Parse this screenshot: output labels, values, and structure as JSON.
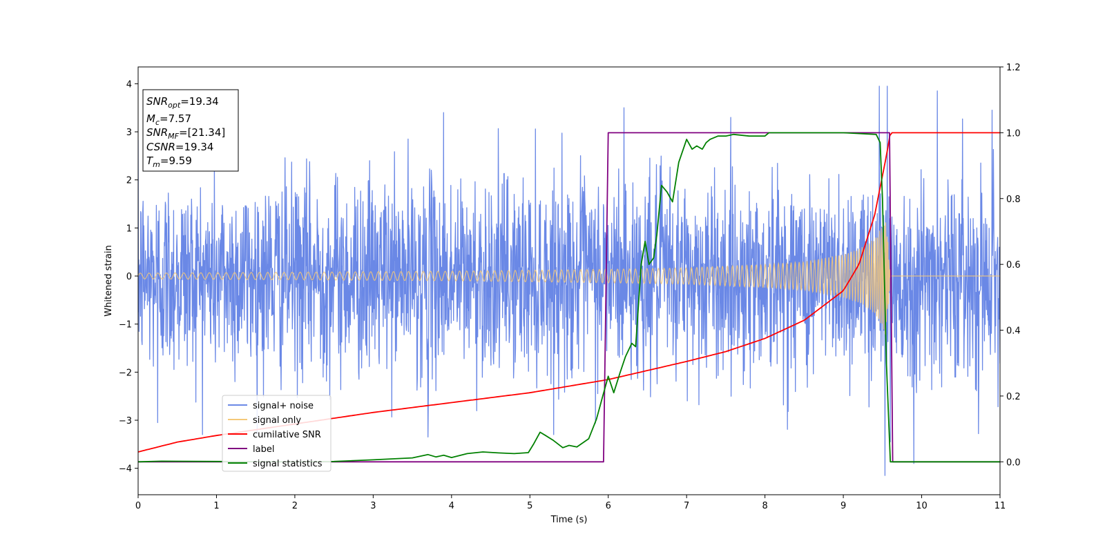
{
  "chart_data": {
    "type": "line",
    "xlabel": "Time (s)",
    "ylabel": "Whitened strain",
    "xlim": [
      0,
      11
    ],
    "ylim_left": [
      -4.55,
      4.35
    ],
    "ylim_right": [
      -0.1,
      1.2
    ],
    "x_ticks": [
      0,
      1,
      2,
      3,
      4,
      5,
      6,
      7,
      8,
      9,
      10,
      11
    ],
    "y_ticks_left": [
      -4,
      -3,
      -2,
      -1,
      0,
      1,
      2,
      3,
      4
    ],
    "y_ticks_right": [
      "0.0",
      "0.2",
      "0.4",
      "0.6",
      "0.8",
      "1.0",
      "1.2"
    ],
    "grid": false,
    "legend_position": "lower-left",
    "annotation_box": {
      "lines": [
        {
          "name": "SNR",
          "sub": "opt",
          "value": "=19.34"
        },
        {
          "name": "M",
          "sub": "c",
          "value": "=7.57"
        },
        {
          "name": "SNR",
          "sub": "MF",
          "value": "=[21.34]"
        },
        {
          "name": "CSNR",
          "sub": "",
          "value": "=19.34"
        },
        {
          "name": "T",
          "sub": "m",
          "value": "=9.59"
        }
      ]
    },
    "series": [
      {
        "name": "signal+ noise",
        "axis": "left",
        "color": "#6a88e6",
        "note_style": "noisy",
        "noise_sigma": 1.0,
        "x_range": [
          0,
          11
        ],
        "spikes": [
          [
            9.46,
            3.95
          ],
          [
            9.56,
            3.95
          ],
          [
            9.53,
            -4.15
          ],
          [
            9.9,
            -3.9
          ],
          [
            10.2,
            3.85
          ],
          [
            10.9,
            3.45
          ],
          [
            6.2,
            3.5
          ],
          [
            3.9,
            3.4
          ],
          [
            9.6,
            -3.45
          ],
          [
            3.7,
            -3.35
          ],
          [
            0.25,
            -3.05
          ]
        ]
      },
      {
        "name": "signal only",
        "axis": "left",
        "color": "#f5c878",
        "x": [
          0,
          1,
          2,
          3,
          4,
          5,
          6,
          7,
          8,
          8.5,
          9,
          9.2,
          9.4,
          9.5,
          9.55,
          9.6
        ],
        "amplitude": [
          0.06,
          0.07,
          0.08,
          0.09,
          0.1,
          0.12,
          0.14,
          0.17,
          0.24,
          0.3,
          0.45,
          0.56,
          0.78,
          1.05,
          1.3,
          0.0
        ]
      },
      {
        "name": "cumilative SNR",
        "axis": "right",
        "color": "#ff0000",
        "x": [
          0,
          0.5,
          1,
          2,
          3,
          4,
          5,
          6,
          7,
          7.5,
          8,
          8.5,
          9,
          9.2,
          9.4,
          9.5,
          9.55,
          9.6,
          11
        ],
        "y": [
          0.03,
          0.06,
          0.08,
          0.115,
          0.15,
          0.18,
          0.21,
          0.25,
          0.305,
          0.335,
          0.375,
          0.43,
          0.52,
          0.6,
          0.75,
          0.87,
          0.93,
          1.0,
          1.0
        ]
      },
      {
        "name": "label",
        "axis": "right",
        "color": "#800080",
        "x": [
          0,
          5.94,
          6.0,
          9.59,
          9.63,
          11
        ],
        "y": [
          0,
          0,
          1,
          1,
          0,
          0
        ]
      },
      {
        "name": "signal statistics",
        "axis": "right",
        "color": "#008000",
        "x": [
          0,
          0.3,
          1,
          2,
          2.5,
          3,
          3.5,
          3.7,
          3.8,
          3.9,
          4.0,
          4.2,
          4.4,
          4.6,
          4.8,
          4.98,
          5.05,
          5.13,
          5.2,
          5.3,
          5.42,
          5.5,
          5.6,
          5.75,
          5.85,
          5.93,
          6.0,
          6.07,
          6.15,
          6.22,
          6.3,
          6.35,
          6.42,
          6.47,
          6.52,
          6.58,
          6.62,
          6.68,
          6.75,
          6.82,
          6.9,
          7.0,
          7.07,
          7.13,
          7.2,
          7.25,
          7.3,
          7.4,
          7.5,
          7.6,
          7.8,
          8.0,
          8.05,
          8.2,
          8.6,
          9.0,
          9.42,
          9.47,
          9.5,
          9.55,
          9.6,
          9.62,
          10,
          11
        ],
        "y": [
          0.0,
          0.002,
          0.001,
          0.0,
          0.001,
          0.006,
          0.012,
          0.022,
          0.015,
          0.02,
          0.013,
          0.025,
          0.03,
          0.027,
          0.025,
          0.028,
          0.055,
          0.09,
          0.08,
          0.065,
          0.043,
          0.05,
          0.045,
          0.07,
          0.13,
          0.2,
          0.26,
          0.21,
          0.27,
          0.32,
          0.36,
          0.35,
          0.6,
          0.67,
          0.6,
          0.62,
          0.69,
          0.84,
          0.82,
          0.79,
          0.91,
          0.98,
          0.95,
          0.96,
          0.95,
          0.97,
          0.98,
          0.99,
          0.99,
          0.995,
          0.99,
          0.99,
          1.0,
          1.0,
          1.0,
          1.0,
          0.995,
          0.97,
          0.8,
          0.3,
          0.0,
          0.0,
          0.0,
          0.0
        ]
      }
    ]
  }
}
